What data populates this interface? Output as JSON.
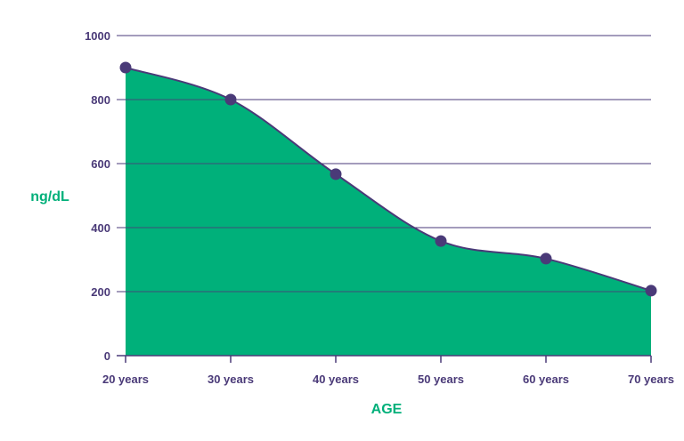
{
  "chart_data": {
    "type": "area",
    "categories": [
      "20 years",
      "30 years",
      "40 years",
      "50 years",
      "60 years",
      "70 years"
    ],
    "values": [
      900,
      800,
      567,
      358,
      303,
      203
    ],
    "xlabel": "AGE",
    "ylabel": "ng/dL",
    "ylim": [
      0,
      1000
    ],
    "yticks": [
      0,
      200,
      400,
      600,
      800,
      1000
    ],
    "grid": true,
    "colors": {
      "fill": "#00b07a",
      "line": "#4a3a78",
      "marker": "#4a3a78",
      "grid": "#4a3a78",
      "tick_text": "#4a3a78",
      "axis_title": "#00b07a"
    }
  }
}
